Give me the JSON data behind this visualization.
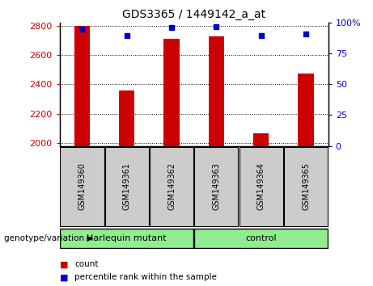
{
  "title": "GDS3365 / 1449142_a_at",
  "samples": [
    "GSM149360",
    "GSM149361",
    "GSM149362",
    "GSM149363",
    "GSM149364",
    "GSM149365"
  ],
  "counts": [
    2800,
    2360,
    2710,
    2730,
    2065,
    2475
  ],
  "percentiles": [
    95,
    90,
    96,
    97,
    90,
    91
  ],
  "ylim_left": [
    1980,
    2820
  ],
  "ylim_right": [
    0,
    100
  ],
  "yticks_left": [
    2000,
    2200,
    2400,
    2600,
    2800
  ],
  "yticks_right": [
    0,
    25,
    50,
    75,
    100
  ],
  "bar_color": "#cc0000",
  "dot_color": "#0000cc",
  "grid_color": "#000000",
  "bg_color": "#ffffff",
  "left_label_color": "#cc0000",
  "right_label_color": "#0000cc",
  "groups": [
    {
      "label": "Harlequin mutant",
      "color": "#90ee90"
    },
    {
      "label": "control",
      "color": "#90ee90"
    }
  ],
  "group_header": "genotype/variation",
  "legend_count_label": "count",
  "legend_pct_label": "percentile rank within the sample",
  "tick_label_bg": "#cccccc",
  "bar_width": 0.35
}
